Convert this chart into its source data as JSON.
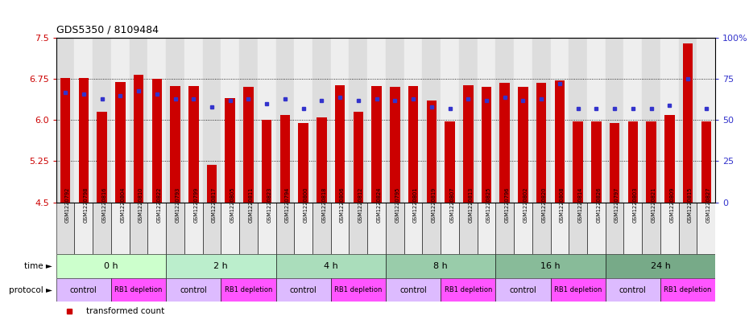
{
  "title": "GDS5350 / 8109484",
  "samples": [
    "GSM1220792",
    "GSM1220798",
    "GSM1220816",
    "GSM1220804",
    "GSM1220810",
    "GSM1220822",
    "GSM1220793",
    "GSM1220799",
    "GSM1220817",
    "GSM1220805",
    "GSM1220811",
    "GSM1220823",
    "GSM1220794",
    "GSM1220800",
    "GSM1220818",
    "GSM1220806",
    "GSM1220812",
    "GSM1220824",
    "GSM1220795",
    "GSM1220801",
    "GSM1220819",
    "GSM1220807",
    "GSM1220813",
    "GSM1220825",
    "GSM1220796",
    "GSM1220802",
    "GSM1220820",
    "GSM1220808",
    "GSM1220814",
    "GSM1220826",
    "GSM1220797",
    "GSM1220803",
    "GSM1220821",
    "GSM1220809",
    "GSM1220815",
    "GSM1220827"
  ],
  "bar_values": [
    6.77,
    6.77,
    6.15,
    6.7,
    6.83,
    6.75,
    6.62,
    6.62,
    5.18,
    6.4,
    6.6,
    6.0,
    6.1,
    5.95,
    6.05,
    6.63,
    6.15,
    6.62,
    6.6,
    6.62,
    6.35,
    5.97,
    6.63,
    6.6,
    6.68,
    6.6,
    6.68,
    6.72,
    5.97,
    5.97,
    5.95,
    5.97,
    5.97,
    6.1,
    7.4,
    5.97
  ],
  "percentile_values": [
    67,
    66,
    63,
    65,
    68,
    66,
    63,
    63,
    58,
    62,
    63,
    60,
    63,
    57,
    62,
    64,
    62,
    63,
    62,
    63,
    58,
    57,
    63,
    62,
    64,
    62,
    63,
    72,
    57,
    57,
    57,
    57,
    57,
    59,
    75,
    57
  ],
  "ylim_left": [
    4.5,
    7.5
  ],
  "ylim_right": [
    0,
    100
  ],
  "yticks_left": [
    4.5,
    5.25,
    6.0,
    6.75,
    7.5
  ],
  "yticks_right": [
    0,
    25,
    50,
    75,
    100
  ],
  "bar_color": "#CC0000",
  "dot_color": "#3333CC",
  "time_groups": [
    {
      "label": "0 h",
      "start": 0,
      "end": 6
    },
    {
      "label": "2 h",
      "start": 6,
      "end": 12
    },
    {
      "label": "4 h",
      "start": 12,
      "end": 18
    },
    {
      "label": "8 h",
      "start": 18,
      "end": 24
    },
    {
      "label": "16 h",
      "start": 24,
      "end": 30
    },
    {
      "label": "24 h",
      "start": 30,
      "end": 36
    }
  ],
  "time_colors": [
    "#CCFFCC",
    "#BBEECC",
    "#AADDBB",
    "#99CCAA",
    "#88BB99",
    "#77AA88"
  ],
  "protocol_groups": [
    {
      "label": "control",
      "start": 0,
      "end": 3
    },
    {
      "label": "RB1 depletion",
      "start": 3,
      "end": 6
    },
    {
      "label": "control",
      "start": 6,
      "end": 9
    },
    {
      "label": "RB1 depletion",
      "start": 9,
      "end": 12
    },
    {
      "label": "control",
      "start": 12,
      "end": 15
    },
    {
      "label": "RB1 depletion",
      "start": 15,
      "end": 18
    },
    {
      "label": "control",
      "start": 18,
      "end": 21
    },
    {
      "label": "RB1 depletion",
      "start": 21,
      "end": 24
    },
    {
      "label": "control",
      "start": 24,
      "end": 27
    },
    {
      "label": "RB1 depletion",
      "start": 27,
      "end": 30
    },
    {
      "label": "control",
      "start": 30,
      "end": 33
    },
    {
      "label": "RB1 depletion",
      "start": 33,
      "end": 36
    }
  ],
  "control_color": "#DDBBFF",
  "depletion_color": "#FF55FF",
  "axis_color_left": "#CC0000",
  "axis_color_right": "#3333CC",
  "bg_color": "#FFFFFF",
  "bar_width": 0.55,
  "cell_bg_even": "#DDDDDD",
  "cell_bg_odd": "#EEEEEE"
}
